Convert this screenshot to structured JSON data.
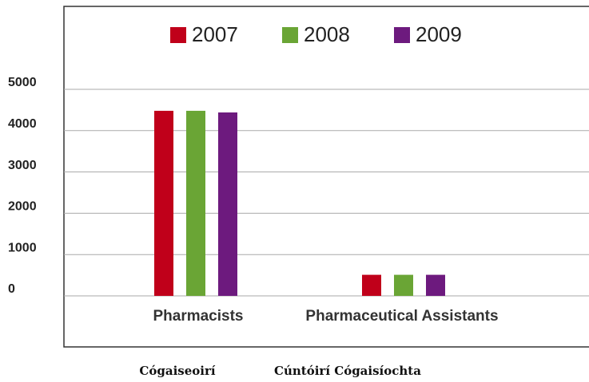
{
  "chart_data": {
    "type": "bar",
    "categories": [
      "Pharmacists",
      "Pharmaceutical Assistants"
    ],
    "category_translations": [
      "Cógaiseoirí",
      "Cúntóirí Cógaisíochta"
    ],
    "series": [
      {
        "name": "2007",
        "color": "#c0001a",
        "values": [
          4480,
          510
        ]
      },
      {
        "name": "2008",
        "color": "#6aa535",
        "values": [
          4480,
          510
        ]
      },
      {
        "name": "2009",
        "color": "#6d1a7e",
        "values": [
          4440,
          510
        ]
      }
    ],
    "ylim": [
      0,
      5000
    ],
    "yticks": [
      0,
      1000,
      2000,
      3000,
      4000,
      5000
    ],
    "grid": true,
    "legend": "top"
  }
}
